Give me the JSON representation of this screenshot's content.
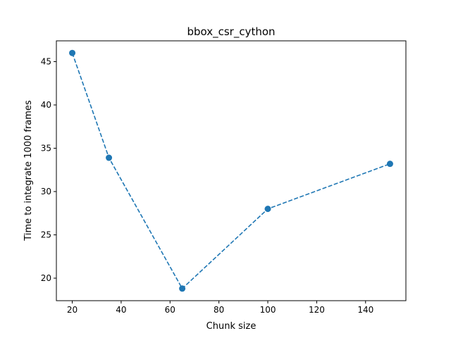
{
  "chart_data": {
    "type": "line",
    "title": "bbox_csr_cython",
    "xlabel": "Chunk size",
    "ylabel": "Time to integrate 1000 frames",
    "x": [
      20,
      35,
      65,
      100,
      150
    ],
    "series": [
      {
        "values": [
          46.0,
          33.9,
          18.8,
          28.0,
          33.2
        ],
        "color": "#1f77b4",
        "line_style": "dashed",
        "marker": "circle"
      }
    ],
    "xlim": [
      13.5,
      156.5
    ],
    "ylim": [
      17.4,
      47.4
    ],
    "xticks": [
      20,
      40,
      60,
      80,
      100,
      120,
      140
    ],
    "yticks": [
      20,
      25,
      30,
      35,
      40,
      45
    ],
    "grid": false,
    "legend": "none"
  }
}
